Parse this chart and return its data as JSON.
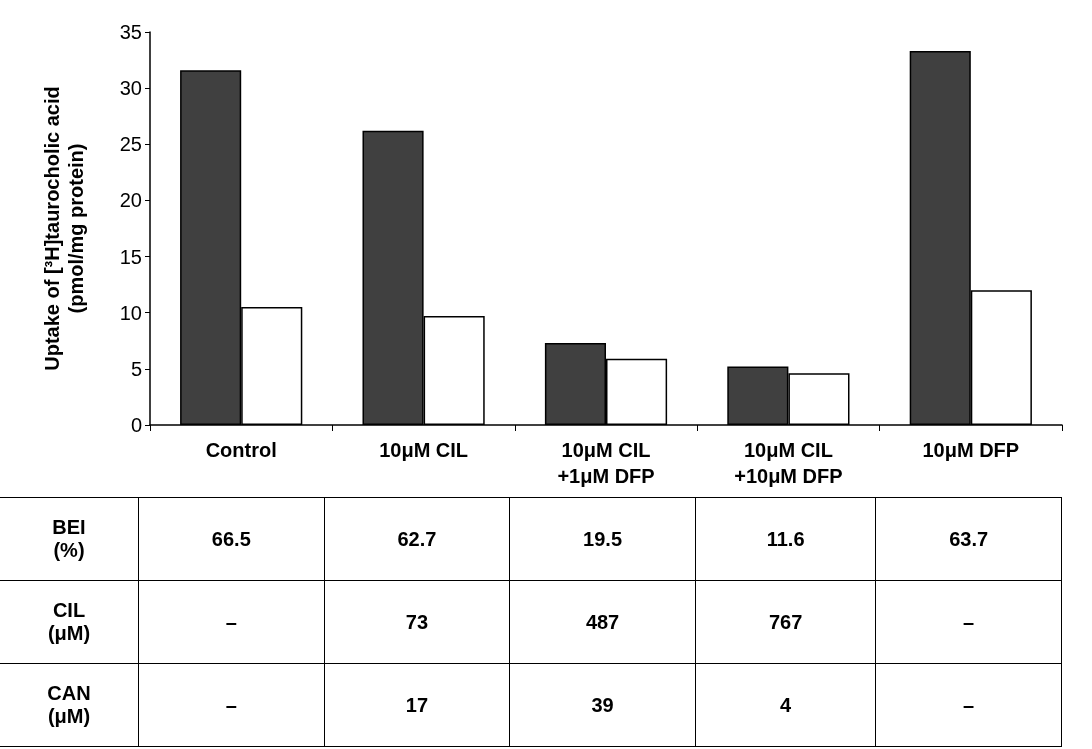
{
  "chart_data": [
    {
      "type": "bar",
      "ylabel": "Uptake of [³H]taurocholic acid\n(pmol/mg protein)",
      "categories": [
        "Control",
        "10μM CIL",
        "10μM CIL\n+1μM DFP",
        "10μM CIL\n+10μM DFP",
        "10μM DFP"
      ],
      "series": [
        {
          "color": "#404040",
          "values": [
            31.6,
            26.2,
            7.3,
            5.2,
            33.3
          ]
        },
        {
          "color": "#ffffff",
          "values": [
            10.5,
            9.7,
            5.9,
            4.6,
            12.0
          ]
        }
      ],
      "ylim": [
        0,
        35
      ],
      "yticks": [
        0,
        5,
        10,
        15,
        20,
        25,
        30,
        35
      ],
      "grid": false
    },
    {
      "type": "other",
      "annotations": [
        "BEI\n(%)",
        "66.5",
        "62.7",
        "19.5",
        "11.6",
        "63.7",
        "CIL\n(μM)",
        "–",
        "73",
        "487",
        "767",
        "–",
        "CAN\n(μM)",
        "–",
        "17",
        "39",
        "4",
        "–"
      ]
    }
  ]
}
